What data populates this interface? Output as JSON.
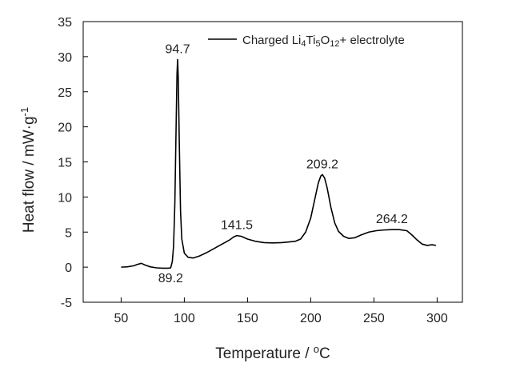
{
  "chart_data": {
    "type": "line",
    "xlabel": "Temperature / °C",
    "xlabel_parts": {
      "main": "Temperature / ",
      "sup": "o",
      "tail": "C"
    },
    "ylabel": "Heat flow / mW·g-1",
    "ylabel_parts": {
      "main": "Heat flow / mW·g",
      "sup": "-1"
    },
    "xlim": [
      20,
      320
    ],
    "ylim": [
      -5,
      35
    ],
    "xticks": [
      50,
      100,
      150,
      200,
      250,
      300
    ],
    "yticks": [
      -5,
      0,
      5,
      10,
      15,
      20,
      25,
      30,
      35
    ],
    "grid": false,
    "legend_position": "top-right",
    "series": [
      {
        "name": "Charged Li4Ti5O12+ electrolyte",
        "name_parts": [
          {
            "t": "Charged Li"
          },
          {
            "t": "4",
            "sub": true
          },
          {
            "t": "Ti"
          },
          {
            "t": "5",
            "sub": true
          },
          {
            "t": "O"
          },
          {
            "t": "12",
            "sub": true
          },
          {
            "t": "+ electrolyte"
          }
        ],
        "color": "#000000",
        "points": [
          [
            50,
            0.0
          ],
          [
            55,
            0.05
          ],
          [
            60,
            0.2
          ],
          [
            63,
            0.4
          ],
          [
            66,
            0.55
          ],
          [
            69,
            0.3
          ],
          [
            73,
            0.05
          ],
          [
            78,
            -0.1
          ],
          [
            83,
            -0.15
          ],
          [
            87,
            -0.15
          ],
          [
            89.2,
            -0.1
          ],
          [
            90.5,
            0.8
          ],
          [
            91.5,
            3.0
          ],
          [
            92.5,
            9.0
          ],
          [
            93.5,
            20.0
          ],
          [
            94.2,
            27.5
          ],
          [
            94.7,
            29.6
          ],
          [
            95.2,
            27.0
          ],
          [
            96.0,
            18.0
          ],
          [
            97.0,
            8.0
          ],
          [
            98.0,
            4.0
          ],
          [
            100,
            2.0
          ],
          [
            103,
            1.4
          ],
          [
            107,
            1.3
          ],
          [
            112,
            1.6
          ],
          [
            118,
            2.1
          ],
          [
            124,
            2.7
          ],
          [
            130,
            3.3
          ],
          [
            136,
            3.9
          ],
          [
            139,
            4.3
          ],
          [
            141.5,
            4.5
          ],
          [
            145,
            4.4
          ],
          [
            150,
            4.0
          ],
          [
            156,
            3.7
          ],
          [
            163,
            3.5
          ],
          [
            170,
            3.45
          ],
          [
            177,
            3.5
          ],
          [
            183,
            3.6
          ],
          [
            188,
            3.7
          ],
          [
            192,
            4.0
          ],
          [
            196,
            5.0
          ],
          [
            200,
            7.0
          ],
          [
            203,
            9.5
          ],
          [
            206,
            12.0
          ],
          [
            208,
            13.0
          ],
          [
            209.2,
            13.2
          ],
          [
            211,
            12.7
          ],
          [
            213,
            11.3
          ],
          [
            216,
            8.5
          ],
          [
            219,
            6.3
          ],
          [
            222,
            5.1
          ],
          [
            226,
            4.4
          ],
          [
            230,
            4.1
          ],
          [
            235,
            4.2
          ],
          [
            240,
            4.6
          ],
          [
            246,
            5.0
          ],
          [
            252,
            5.2
          ],
          [
            258,
            5.3
          ],
          [
            264.2,
            5.35
          ],
          [
            270,
            5.35
          ],
          [
            276,
            5.2
          ],
          [
            280,
            4.6
          ],
          [
            284,
            3.9
          ],
          [
            288,
            3.3
          ],
          [
            292,
            3.1
          ],
          [
            296,
            3.2
          ],
          [
            299,
            3.1
          ]
        ]
      }
    ],
    "annotations": [
      {
        "text": "94.7",
        "x": 94.7,
        "y": 29.6,
        "anchor": "middle",
        "dy": -8
      },
      {
        "text": "89.2",
        "x": 89.2,
        "y": -0.1,
        "anchor": "middle",
        "dy": 18
      },
      {
        "text": "141.5",
        "x": 141.5,
        "y": 4.5,
        "anchor": "middle",
        "dy": -8
      },
      {
        "text": "209.2",
        "x": 209.2,
        "y": 13.2,
        "anchor": "middle",
        "dy": -8
      },
      {
        "text": "264.2",
        "x": 264.2,
        "y": 5.35,
        "anchor": "middle",
        "dy": -8
      }
    ]
  }
}
